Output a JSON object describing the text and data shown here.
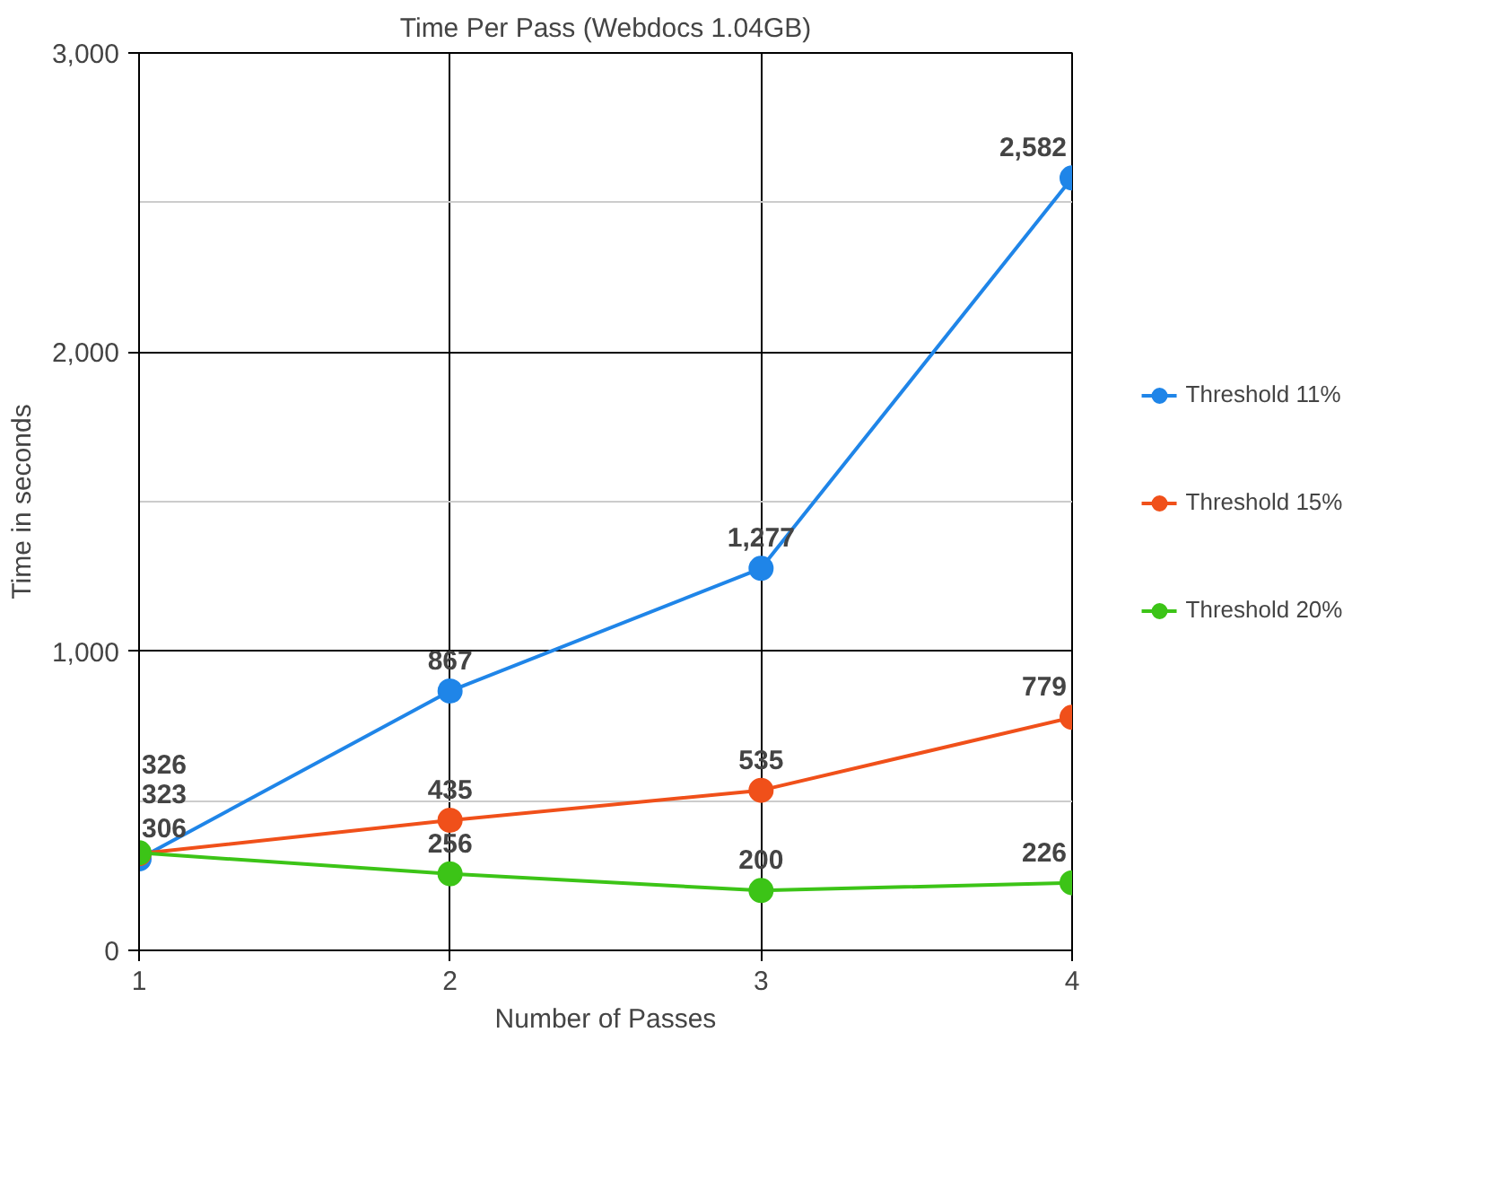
{
  "chart_data": {
    "type": "line",
    "title": "Time Per Pass (Webdocs 1.04GB)",
    "xlabel": "Number of Passes",
    "ylabel": "Time in seconds",
    "x": [
      1,
      2,
      3,
      4
    ],
    "xlim": [
      1,
      4
    ],
    "xticks": [
      1,
      2,
      3,
      4
    ],
    "ylim": [
      0,
      3000
    ],
    "yticks": [
      {
        "value": 0,
        "label": "0"
      },
      {
        "value": 1000,
        "label": "1,000"
      },
      {
        "value": 2000,
        "label": "2,000"
      },
      {
        "value": 3000,
        "label": "3,000"
      }
    ],
    "series": [
      {
        "name": "Threshold 11%",
        "color": "#1f85e8",
        "values": [
          306,
          867,
          1277,
          2582
        ],
        "value_labels": [
          "306",
          "867",
          "1,277",
          "2,582"
        ]
      },
      {
        "name": "Threshold 15%",
        "color": "#f0501a",
        "values": [
          323,
          435,
          535,
          779
        ],
        "value_labels": [
          "323",
          "435",
          "535",
          "779"
        ]
      },
      {
        "name": "Threshold 20%",
        "color": "#3cc417",
        "values": [
          326,
          256,
          200,
          226
        ],
        "value_labels": [
          "326",
          "256",
          "200",
          "226"
        ]
      }
    ],
    "grid": true,
    "legend": "right",
    "marker": "circle",
    "line_style": "solid"
  }
}
